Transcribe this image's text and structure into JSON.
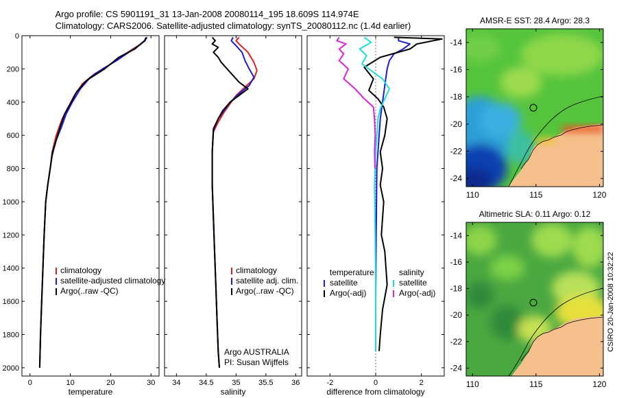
{
  "header": {
    "line1": "Argo profile: CS 5901191_31 13-Jan-2008 20080114_195 18.609S 114.974E",
    "line2": "Climatology: CARS2006. Satellite-adjusted climatology: synTS_20080112.nc (1.4d earlier)"
  },
  "credit": "CSIRO 20-Jan-2008 10:32:22",
  "colors": {
    "climatology": "#e02020",
    "satellite": "#1a1ad8",
    "argo": "#000000",
    "satellite_sal": "#22dddd",
    "argo_sal": "#dd22dd"
  },
  "chart_data": [
    {
      "type": "line",
      "xlabel": "temperature",
      "ylabel": "",
      "xlim": [
        -2,
        32
      ],
      "ylim": [
        2050,
        0
      ],
      "xticks": [
        0,
        10,
        20,
        30
      ],
      "yticks": [
        0,
        200,
        400,
        600,
        800,
        1000,
        1200,
        1400,
        1600,
        1800,
        2000
      ],
      "legend": {
        "placement": "lower-right",
        "labels": [
          "climatology",
          "satellite-adjusted climatology",
          "Argo(..raw -QC)"
        ]
      },
      "series": [
        {
          "name": "climatology",
          "color": "#e02020",
          "points": [
            [
              29,
              10
            ],
            [
              28.5,
              30
            ],
            [
              27.5,
              50
            ],
            [
              25.5,
              80
            ],
            [
              23,
              120
            ],
            [
              19.5,
              180
            ],
            [
              16,
              230
            ],
            [
              13,
              290
            ],
            [
              11,
              360
            ],
            [
              9.5,
              430
            ],
            [
              8,
              500
            ],
            [
              6.5,
              600
            ],
            [
              5.5,
              700
            ],
            [
              5,
              800
            ],
            [
              4.4,
              900
            ],
            [
              3.9,
              1000
            ],
            [
              3.5,
              1200
            ],
            [
              3.2,
              1400
            ],
            [
              2.9,
              1600
            ],
            [
              2.6,
              1800
            ],
            [
              2.4,
              2000
            ]
          ]
        },
        {
          "name": "satellite-adjusted climatology",
          "color": "#1a1ad8",
          "points": [
            [
              29,
              10
            ],
            [
              28.5,
              30
            ],
            [
              27,
              60
            ],
            [
              24.5,
              100
            ],
            [
              21.5,
              150
            ],
            [
              18,
              200
            ],
            [
              15,
              250
            ],
            [
              12.5,
              320
            ],
            [
              10.5,
              400
            ],
            [
              9,
              470
            ],
            [
              7.8,
              550
            ],
            [
              6.5,
              630
            ],
            [
              5.5,
              720
            ],
            [
              5,
              800
            ],
            [
              4.4,
              900
            ],
            [
              3.9,
              1000
            ],
            [
              3.5,
              1200
            ],
            [
              3.2,
              1400
            ],
            [
              2.9,
              1600
            ],
            [
              2.6,
              1800
            ],
            [
              2.4,
              2000
            ]
          ]
        },
        {
          "name": "Argo(..raw -QC)",
          "color": "#000000",
          "points": [
            [
              28.8,
              10
            ],
            [
              28.4,
              30
            ],
            [
              26,
              80
            ],
            [
              22,
              130
            ],
            [
              18.5,
              200
            ],
            [
              14,
              270
            ],
            [
              11.5,
              340
            ],
            [
              10,
              410
            ],
            [
              8.6,
              470
            ],
            [
              7.6,
              540
            ],
            [
              6.6,
              620
            ],
            [
              5.6,
              700
            ],
            [
              5,
              800
            ],
            [
              4.4,
              900
            ],
            [
              3.9,
              1000
            ],
            [
              3.5,
              1200
            ],
            [
              3.2,
              1400
            ],
            [
              2.9,
              1600
            ],
            [
              2.6,
              1800
            ],
            [
              2.4,
              2000
            ]
          ]
        }
      ]
    },
    {
      "type": "line",
      "xlabel": "salinity",
      "ylabel": "",
      "xlim": [
        33.8,
        36.1
      ],
      "ylim": [
        2050,
        0
      ],
      "xticks": [
        34,
        34.5,
        35,
        35.5,
        36
      ],
      "xticklabels": [
        "34",
        "34.5",
        "35",
        "35.5",
        "36"
      ],
      "legend": {
        "placement": "lower-right",
        "labels": [
          "climatology",
          "satellite adj. clim.",
          "Argo(..raw -QC)"
        ]
      },
      "annotation": [
        "Argo AUSTRALIA",
        "PI: Susan Wijffels"
      ],
      "series": [
        {
          "name": "climatology",
          "color": "#e02020",
          "points": [
            [
              35.05,
              10
            ],
            [
              35.0,
              30
            ],
            [
              35.05,
              50
            ],
            [
              35.2,
              100
            ],
            [
              35.3,
              160
            ],
            [
              35.35,
              210
            ],
            [
              35.3,
              260
            ],
            [
              35.15,
              310
            ],
            [
              35.0,
              360
            ],
            [
              34.9,
              410
            ],
            [
              34.8,
              460
            ],
            [
              34.7,
              520
            ],
            [
              34.62,
              580
            ],
            [
              34.6,
              700
            ],
            [
              34.6,
              900
            ],
            [
              34.62,
              1100
            ],
            [
              34.64,
              1300
            ],
            [
              34.66,
              1500
            ],
            [
              34.68,
              1700
            ],
            [
              34.7,
              1900
            ],
            [
              34.72,
              2000
            ]
          ]
        },
        {
          "name": "satellite adj. clim.",
          "color": "#1a1ad8",
          "points": [
            [
              34.95,
              10
            ],
            [
              34.92,
              30
            ],
            [
              35.0,
              60
            ],
            [
              35.1,
              100
            ],
            [
              35.15,
              150
            ],
            [
              35.22,
              200
            ],
            [
              35.3,
              250
            ],
            [
              35.22,
              300
            ],
            [
              35.05,
              350
            ],
            [
              34.9,
              400
            ],
            [
              34.8,
              450
            ],
            [
              34.7,
              500
            ],
            [
              34.62,
              570
            ],
            [
              34.6,
              700
            ],
            [
              34.6,
              900
            ],
            [
              34.62,
              1100
            ],
            [
              34.64,
              1300
            ],
            [
              34.66,
              1500
            ],
            [
              34.68,
              1700
            ],
            [
              34.7,
              1900
            ],
            [
              34.72,
              2000
            ]
          ]
        },
        {
          "name": "Argo(..raw -QC)",
          "color": "#000000",
          "points": [
            [
              34.6,
              10
            ],
            [
              34.65,
              30
            ],
            [
              34.6,
              50
            ],
            [
              34.7,
              70
            ],
            [
              34.62,
              100
            ],
            [
              34.7,
              130
            ],
            [
              34.75,
              160
            ],
            [
              34.85,
              200
            ],
            [
              34.95,
              240
            ],
            [
              35.05,
              280
            ],
            [
              35.2,
              320
            ],
            [
              35.05,
              360
            ],
            [
              34.9,
              400
            ],
            [
              34.78,
              450
            ],
            [
              34.7,
              500
            ],
            [
              34.62,
              560
            ],
            [
              34.6,
              700
            ],
            [
              34.6,
              900
            ],
            [
              34.62,
              1100
            ],
            [
              34.64,
              1300
            ],
            [
              34.66,
              1500
            ],
            [
              34.68,
              1700
            ],
            [
              34.7,
              1900
            ],
            [
              34.72,
              2000
            ]
          ]
        }
      ]
    },
    {
      "type": "line",
      "xlabel": "difference from climatology",
      "ylabel": "",
      "xlim": [
        -3,
        3
      ],
      "ylim": [
        2050,
        0
      ],
      "xticks": [
        -2,
        0,
        2
      ],
      "legend": {
        "placement": "lower-center",
        "groups": [
          {
            "title": "temperature",
            "labels": [
              "satellite",
              "Argo(-adj)"
            ]
          },
          {
            "title": "salinity",
            "labels": [
              "satellite",
              "Argo(-adj)"
            ]
          }
        ]
      },
      "series": [
        {
          "name": "temperature satellite",
          "color": "#1a1ad8",
          "points": [
            [
              1.0,
              10
            ],
            [
              1.0,
              30
            ],
            [
              1.5,
              50
            ],
            [
              1.2,
              80
            ],
            [
              0.8,
              110
            ],
            [
              0.6,
              150
            ],
            [
              0.5,
              200
            ],
            [
              0.4,
              300
            ],
            [
              0.3,
              400
            ],
            [
              0.2,
              500
            ],
            [
              0.15,
              600
            ],
            [
              0.05,
              800
            ],
            [
              0.02,
              1200
            ],
            [
              0,
              1600
            ],
            [
              0,
              1900
            ]
          ]
        },
        {
          "name": "temperature Argo(-adj)",
          "color": "#000000",
          "points": [
            [
              0.8,
              10
            ],
            [
              2.9,
              20
            ],
            [
              1.8,
              50
            ],
            [
              1.5,
              80
            ],
            [
              0.2,
              130
            ],
            [
              -0.5,
              190
            ],
            [
              -0.1,
              260
            ],
            [
              -0.3,
              330
            ],
            [
              0.1,
              380
            ],
            [
              0.35,
              430
            ],
            [
              0.5,
              500
            ],
            [
              0.4,
              600
            ],
            [
              0.2,
              700
            ],
            [
              0.3,
              800
            ],
            [
              0.2,
              900
            ],
            [
              0.35,
              1000
            ],
            [
              0.25,
              1200
            ],
            [
              0.4,
              1300
            ],
            [
              0.5,
              1500
            ],
            [
              0.3,
              1650
            ],
            [
              0.2,
              1800
            ],
            [
              0.15,
              1900
            ]
          ]
        },
        {
          "name": "salinity satellite",
          "color": "#22dddd",
          "points": [
            [
              -0.5,
              10
            ],
            [
              -0.2,
              40
            ],
            [
              -0.7,
              80
            ],
            [
              -0.4,
              120
            ],
            [
              -0.6,
              170
            ],
            [
              -0.2,
              210
            ],
            [
              0.3,
              260
            ],
            [
              0.6,
              320
            ],
            [
              0.4,
              380
            ],
            [
              0.2,
              440
            ],
            [
              0.1,
              500
            ],
            [
              0.05,
              600
            ],
            [
              0,
              700
            ],
            [
              -0.05,
              900
            ],
            [
              -0.02,
              1200
            ],
            [
              0,
              1500
            ],
            [
              0,
              1700
            ],
            [
              0,
              1900
            ]
          ]
        },
        {
          "name": "salinity Argo(-adj)",
          "color": "#dd22dd",
          "points": [
            [
              -1.6,
              10
            ],
            [
              -1.7,
              30
            ],
            [
              -1.3,
              50
            ],
            [
              -1.6,
              80
            ],
            [
              -1.4,
              110
            ],
            [
              -1.6,
              150
            ],
            [
              -1.2,
              200
            ],
            [
              -1.4,
              260
            ],
            [
              -0.9,
              320
            ],
            [
              -0.5,
              380
            ],
            [
              -0.1,
              430
            ],
            [
              -0.05,
              500
            ],
            [
              -0.02,
              600
            ],
            [
              -0.05,
              700
            ],
            [
              -0.03,
              800
            ]
          ]
        }
      ]
    },
    {
      "type": "heatmap",
      "title": "AMSR-E SST: 28.4  Argo: 28.3",
      "xlim": [
        109.5,
        120.3
      ],
      "ylim": [
        -24.6,
        -13.0
      ],
      "xticks": [
        110,
        115,
        120
      ],
      "yticks": [
        -14,
        -16,
        -18,
        -20,
        -22,
        -24
      ],
      "marker": {
        "lon": 114.974,
        "lat": -18.609
      }
    },
    {
      "type": "heatmap",
      "title": "Altimetric SLA: 0.11  Argo: 0.12",
      "xlim": [
        109.5,
        120.3
      ],
      "ylim": [
        -24.6,
        -13.0
      ],
      "xticks": [
        110,
        115,
        120
      ],
      "yticks": [
        -14,
        -16,
        -18,
        -20,
        -22,
        -24
      ],
      "marker": {
        "lon": 114.974,
        "lat": -18.609
      }
    }
  ]
}
